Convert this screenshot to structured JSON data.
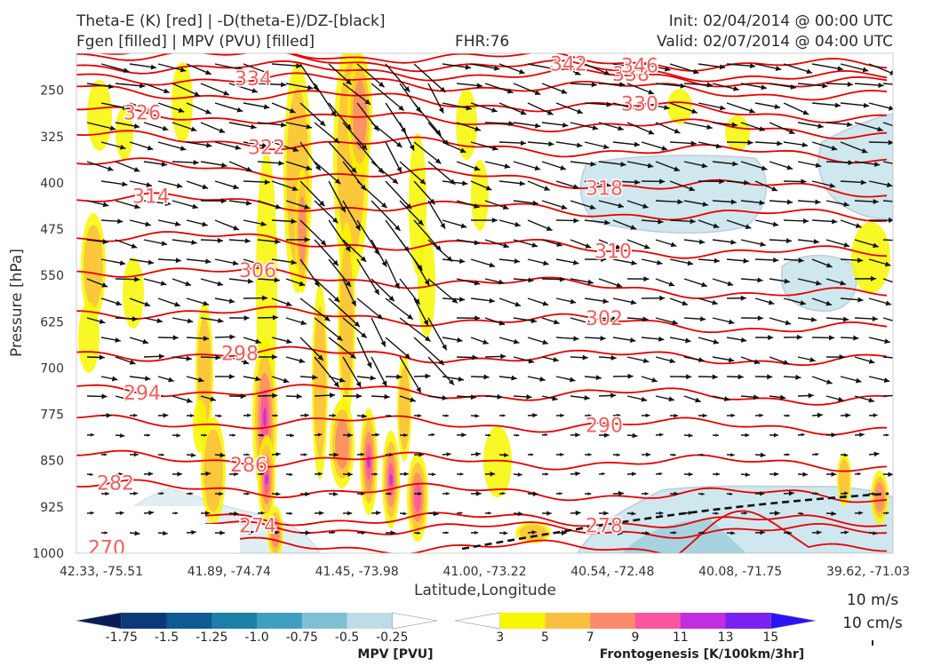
{
  "header": {
    "left_line1": "Theta-E (K) [red] | -D(theta-E)/DZ-[black]",
    "left_line2": "Fgen [filled] | MPV (PVU) [filled]",
    "center": "FHR:76",
    "right_line1": "Init: 02/04/2014 @ 00:00 UTC",
    "right_line2": "Valid: 02/07/2014 @ 04:00 UTC"
  },
  "chart_data": {
    "type": "cross-section",
    "xlabel": "Latitude,Longitude",
    "ylabel": "Pressure [hPa]",
    "x_ticks": [
      "42.33, -75.51",
      "41.89, -74.74",
      "41.45, -73.98",
      "41.00, -73.22",
      "40.54, -72.48",
      "40.08, -71.75",
      "39.62, -71.03"
    ],
    "y_ticks": [
      250,
      325,
      400,
      475,
      550,
      625,
      700,
      775,
      850,
      925,
      1000
    ],
    "ylim": [
      1000,
      190
    ],
    "theta_e_contours": [
      {
        "label": "270",
        "p": 990
      },
      {
        "label": "274",
        "p": 960
      },
      {
        "label": "278",
        "p": 945
      },
      {
        "label": "282",
        "p": 900
      },
      {
        "label": "286",
        "p": 850
      },
      {
        "label": "290",
        "p": 790
      },
      {
        "label": "294",
        "p": 740
      },
      {
        "label": "298",
        "p": 680
      },
      {
        "label": "302",
        "p": 620
      },
      {
        "label": "306",
        "p": 560
      },
      {
        "label": "310",
        "p": 500
      },
      {
        "label": "314",
        "p": 440
      },
      {
        "label": "318",
        "p": 390
      },
      {
        "label": "322",
        "p": 340
      },
      {
        "label": "326",
        "p": 300
      },
      {
        "label": "330",
        "p": 268
      },
      {
        "label": "334",
        "p": 240
      },
      {
        "label": "338",
        "p": 222
      },
      {
        "label": "342",
        "p": 208
      },
      {
        "label": "346",
        "p": 196
      }
    ],
    "mpv_colorbar": {
      "title": "MPV [PVU]",
      "ticks": [
        "-1.75",
        "-1.5",
        "-1.25",
        "-1.0",
        "-0.75",
        "-0.5",
        "-0.25"
      ],
      "colors": [
        "#081d58",
        "#0c3a78",
        "#0e5a94",
        "#1b7fa8",
        "#3f9fc0",
        "#7fbfd4",
        "#bcdde8",
        "#ffffff"
      ]
    },
    "fgen_colorbar": {
      "title": "Frontogenesis [K/100km/3hr]",
      "ticks": [
        "3",
        "5",
        "7",
        "9",
        "11",
        "13",
        "15"
      ],
      "colors": [
        "#ffffff",
        "#f7f700",
        "#fbbf3f",
        "#fb8a6a",
        "#fb55a0",
        "#c02ee0",
        "#7a22f0",
        "#2b12f8"
      ]
    },
    "vector_legend": [
      "10 m/s",
      "10 cm/s"
    ]
  }
}
